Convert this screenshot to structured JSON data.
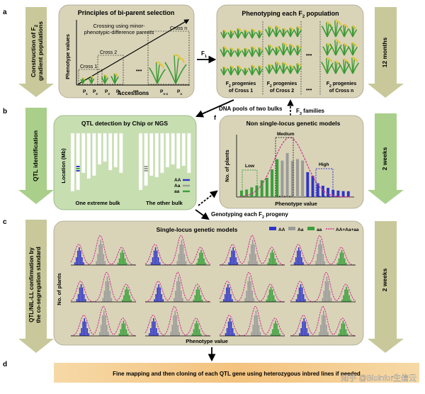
{
  "panel_labels": {
    "a": "a",
    "b": "b",
    "c": "c",
    "d": "d",
    "f": "f"
  },
  "side_arrows": {
    "a": [
      "Construction of F",
      "2",
      "gradient populations"
    ],
    "b": "QTL identification",
    "c": [
      "QTL/NIL-LL confirmation by",
      "the co-segregation standard"
    ]
  },
  "durations": {
    "a": "12 months",
    "b": "2 weeks",
    "c": "2 weeks"
  },
  "panel_a_left": {
    "title": "Principles of bi-parent selection",
    "note_line1": "Crossing using minor-",
    "note_line2": "phenotypic-difference  parents",
    "ylabel": "Phenotype values",
    "xlabel": "Accessions",
    "cross_labels": [
      "Cross 1",
      "Cross 2",
      "Cross n"
    ],
    "parent_labels": [
      "P",
      "P",
      "P",
      "P",
      "P",
      "P"
    ],
    "parent_subs": [
      "1",
      "2",
      "3",
      "4",
      "n-1",
      "n"
    ],
    "ellipsis": "•••"
  },
  "arrow_f1": {
    "label": "F",
    "sub": "1"
  },
  "panel_a_right": {
    "title_pre": "Phenotyping each F",
    "title_sub": "2",
    "title_post": " population",
    "captions": [
      {
        "pre": "F",
        "sub": "2",
        "post": " progenies",
        "line2": "of Cross 1"
      },
      {
        "pre": "F",
        "sub": "2",
        "post": " progenies",
        "line2": "of Cross 2"
      },
      {
        "pre": "F",
        "sub": "2",
        "post": " progenies",
        "line2": "of Cross n"
      }
    ],
    "ellipsis": "•••"
  },
  "between_ab": {
    "dna_pools": "DNA pools of two bulks",
    "f3_pre": "F",
    "f3_sub": "3",
    "f3_post": " families"
  },
  "panel_b_left": {
    "title": "QTL detection by Chip or NGS",
    "ylabel": "Location (Mb)",
    "bulk_labels": [
      "One extreme bulk",
      "The other bulk"
    ],
    "legend": [
      "AA",
      "Aa",
      "aa"
    ]
  },
  "panel_b_right": {
    "title": "Non single-locus genetic models",
    "ylabel": "No. of plants",
    "xlabel": "Phenotype value",
    "region_labels": [
      "Low",
      "Medium",
      "High"
    ]
  },
  "genotyping": {
    "pre": "Genotyping each F",
    "sub": "2",
    "post": " progeny"
  },
  "panel_c": {
    "title": "Single-locus genetic models",
    "legend": [
      "AA",
      "Aa",
      "aa",
      "AA+Aa+aa"
    ],
    "ylabel": "No. of plants",
    "xlabel": "Phenotype value"
  },
  "panel_d": {
    "text": "Fine mapping and then cloning of each QTL gene using heterozygous inbred lines if needed",
    "watermark": "知乎 @Bioinfor生信云"
  },
  "colors": {
    "panel_bg": "#d9d4b8",
    "panel_green": "#c7deb1",
    "arrow": "#c8c89a",
    "aa_blue": "#2f35c9",
    "het_grey": "#9a9a9a",
    "hom_green": "#3a9f3c",
    "curve_pink": "#d02f94",
    "plant_green": "#3c9a35",
    "plant_yellow": "#e0c534",
    "band_orange": "#f4c98a"
  }
}
